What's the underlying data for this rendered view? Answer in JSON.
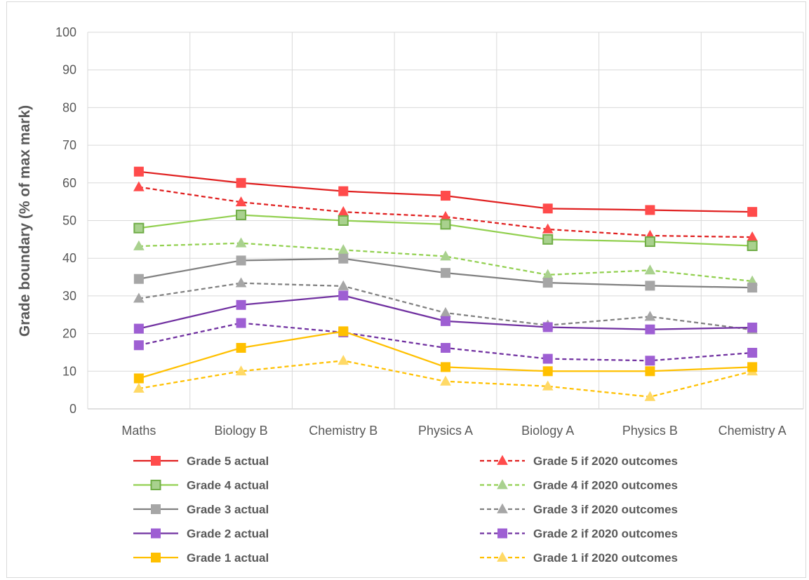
{
  "chart_data": {
    "type": "line",
    "title": "",
    "xlabel": "",
    "ylabel": "Grade boundary (% of max mark)",
    "ylim": [
      0,
      100
    ],
    "yticks": [
      0,
      10,
      20,
      30,
      40,
      50,
      60,
      70,
      80,
      90,
      100
    ],
    "grid": true,
    "legend_position": "bottom",
    "categories": [
      "Maths",
      "Biology B",
      "Chemistry B",
      "Physics A",
      "Biology A",
      "Physics B",
      "Chemistry A"
    ],
    "series": [
      {
        "name": "Grade 5 actual",
        "color": "#e02020",
        "marker": "square",
        "dashed": false,
        "values": [
          63,
          60,
          57.8,
          56.6,
          53.2,
          52.8,
          52.3
        ]
      },
      {
        "name": "Grade 5 if 2020 outcomes",
        "color": "#e02020",
        "marker": "triangle",
        "dashed": true,
        "values": [
          58.9,
          54.9,
          52.3,
          51.0,
          47.7,
          46.0,
          45.6
        ]
      },
      {
        "name": "Grade 4 actual",
        "color": "#92d050",
        "marker": "square-green",
        "dashed": false,
        "values": [
          48,
          51.5,
          50,
          49,
          45,
          44.4,
          43.3
        ]
      },
      {
        "name": "Grade 4 if 2020 outcomes",
        "color": "#92d050",
        "marker": "triangle",
        "dashed": true,
        "values": [
          43.2,
          44,
          42.2,
          40.5,
          35.6,
          36.8,
          33.9
        ]
      },
      {
        "name": "Grade 3 actual",
        "color": "#808080",
        "marker": "square",
        "dashed": false,
        "values": [
          34.5,
          39.4,
          39.9,
          36.1,
          33.5,
          32.7,
          32.2
        ]
      },
      {
        "name": "Grade 3 if 2020 outcomes",
        "color": "#808080",
        "marker": "triangle",
        "dashed": true,
        "values": [
          29.3,
          33.4,
          32.6,
          25.5,
          22.2,
          24.5,
          21.0
        ]
      },
      {
        "name": "Grade 2 actual",
        "color": "#7030a0",
        "marker": "square",
        "dashed": false,
        "values": [
          21.3,
          27.6,
          30.1,
          23.3,
          21.7,
          21.1,
          21.6
        ]
      },
      {
        "name": "Grade 2 if 2020 outcomes",
        "color": "#7030a0",
        "marker": "square",
        "dashed": true,
        "values": [
          16.9,
          22.8,
          20.3,
          16.2,
          13.3,
          12.8,
          14.9
        ]
      },
      {
        "name": "Grade 1 actual",
        "color": "#ffc000",
        "marker": "square",
        "dashed": false,
        "values": [
          8.1,
          16.2,
          20.6,
          11.1,
          10,
          10,
          11.1
        ]
      },
      {
        "name": "Grade 1 if 2020 outcomes",
        "color": "#ffc000",
        "marker": "triangle",
        "dashed": true,
        "values": [
          5.4,
          10,
          12.8,
          7.3,
          6.0,
          3.2,
          10
        ]
      }
    ],
    "marker_colors": {
      "grade5": "#ff4b4b",
      "grade4_fill": "#a9d18e",
      "grade4_border": "#70ad47",
      "grade3": "#a6a6a6",
      "grade2": "#9e5fd3",
      "grade1": "#ffc000",
      "grade4_triangle": "#a9d18e",
      "grade3_triangle": "#a6a6a6",
      "grade1_triangle": "#ffd966"
    }
  }
}
